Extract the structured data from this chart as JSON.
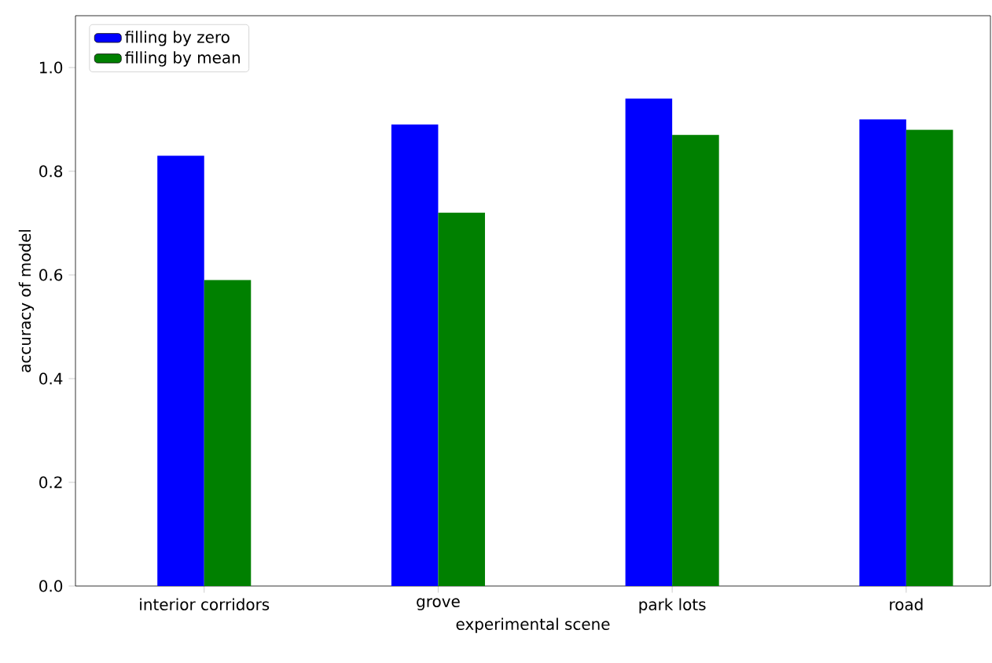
{
  "chart_data": {
    "type": "bar",
    "xlabel": "experimental scene",
    "ylabel": "accuracy of model",
    "categories": [
      "interior corridors",
      "grove",
      "park lots",
      "road"
    ],
    "series": [
      {
        "name": "filling by zero",
        "color": "#0000ff",
        "values": [
          0.83,
          0.89,
          0.94,
          0.9
        ]
      },
      {
        "name": "filling by mean",
        "color": "#008000",
        "values": [
          0.59,
          0.72,
          0.87,
          0.88
        ]
      }
    ],
    "ylim": [
      0,
      1.1
    ],
    "yticks": [
      {
        "value": 0,
        "label": "0.0"
      },
      {
        "value": 0.2,
        "label": "0.2"
      },
      {
        "value": 0.4,
        "label": "0.4"
      },
      {
        "value": 0.6,
        "label": "0.6"
      },
      {
        "value": 0.8,
        "label": "0.8"
      },
      {
        "value": 1.0,
        "label": "1.0"
      }
    ],
    "legend": "top left",
    "grid": false
  }
}
